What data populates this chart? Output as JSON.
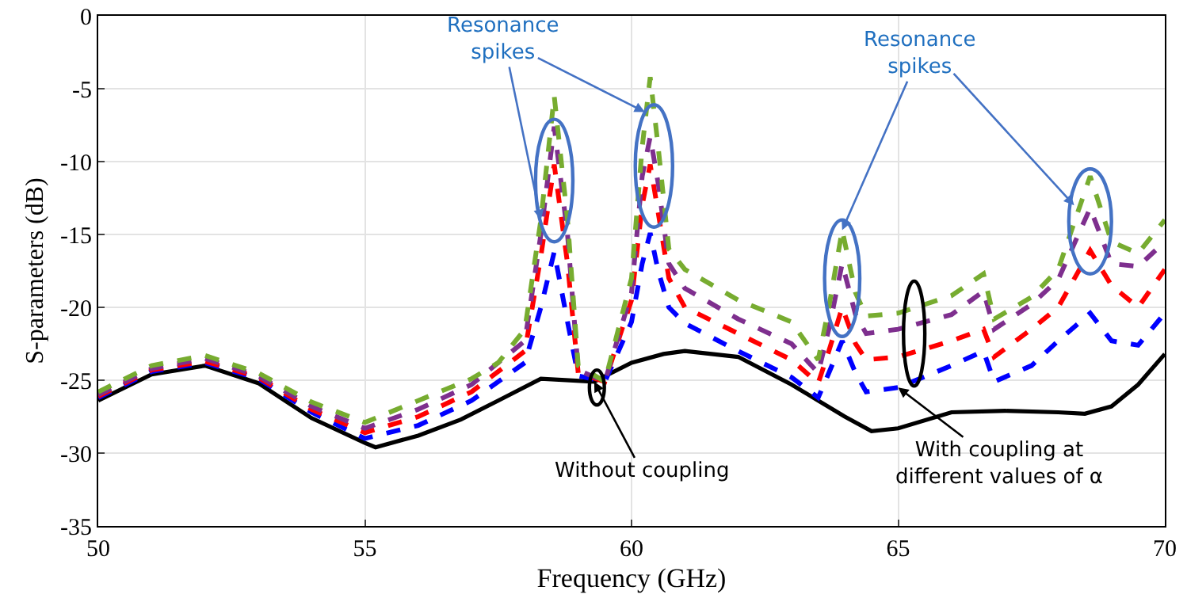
{
  "chart_data": {
    "type": "line",
    "xlabel": "Frequency (GHz)",
    "ylabel": "S-parameters (dB)",
    "xlim": [
      50,
      70
    ],
    "xticks": [
      50,
      55,
      60,
      65,
      70
    ],
    "ylim": [
      -35,
      0
    ],
    "yticks": [
      -35,
      -30,
      -25,
      -20,
      -15,
      -10,
      -5,
      0
    ],
    "grid": true,
    "marker": "none",
    "series": [
      {
        "color": "#000000",
        "line_style": "solid",
        "x": [
          50,
          51,
          52,
          53,
          54,
          55,
          55.2,
          56,
          56.8,
          57.5,
          58.3,
          59.3,
          60,
          60.6,
          61,
          62,
          63,
          64,
          64.5,
          65,
          66,
          67,
          68,
          68.5,
          69,
          69.5,
          70
        ],
        "values": [
          -26.4,
          -24.6,
          -24.0,
          -25.2,
          -27.6,
          -29.3,
          -29.6,
          -28.8,
          -27.7,
          -26.4,
          -24.9,
          -25.1,
          -23.8,
          -23.2,
          -23.0,
          -23.4,
          -25.3,
          -27.5,
          -28.5,
          -28.3,
          -27.2,
          -27.1,
          -27.2,
          -27.3,
          -26.8,
          -25.3,
          -23.2
        ]
      },
      {
        "color": "#0000ff",
        "line_style": "dashed",
        "x": [
          50,
          51,
          52,
          53,
          54,
          55,
          56,
          57,
          58,
          58.3,
          58.55,
          58.8,
          59.0,
          59.5,
          60.0,
          60.2,
          60.35,
          60.5,
          60.7,
          61,
          62,
          63,
          63.5,
          63.7,
          63.95,
          64.2,
          64.4,
          65,
          66,
          66.6,
          66.8,
          67.5,
          68,
          68.6,
          69,
          69.5,
          70
        ],
        "values": [
          -26.2,
          -24.4,
          -23.8,
          -24.9,
          -27.2,
          -29.0,
          -28.1,
          -26.4,
          -23.8,
          -20.0,
          -16.2,
          -21.0,
          -24.7,
          -25.1,
          -21.0,
          -17.0,
          -14.9,
          -17.5,
          -20.0,
          -21.1,
          -23.0,
          -24.8,
          -26.2,
          -24.5,
          -22.3,
          -24.5,
          -25.8,
          -25.5,
          -24.0,
          -23.0,
          -25.1,
          -24.0,
          -22.3,
          -20.4,
          -22.3,
          -22.6,
          -20.4
        ]
      },
      {
        "color": "#ff0000",
        "line_style": "dashed",
        "x": [
          50,
          51,
          52,
          53,
          54,
          55,
          56,
          57,
          58,
          58.3,
          58.55,
          58.8,
          59.0,
          59.5,
          60.0,
          60.2,
          60.35,
          60.5,
          60.7,
          61,
          62,
          63,
          63.5,
          63.7,
          63.95,
          64.2,
          64.4,
          65,
          66,
          66.6,
          66.8,
          67.5,
          68,
          68.6,
          69,
          69.5,
          70
        ],
        "values": [
          -26.1,
          -24.3,
          -23.7,
          -24.8,
          -27.0,
          -28.6,
          -27.5,
          -25.8,
          -23.0,
          -16.5,
          -10.2,
          -17.0,
          -24.5,
          -25.1,
          -19.5,
          -13.0,
          -10.2,
          -13.5,
          -18.0,
          -20.0,
          -21.8,
          -23.6,
          -25.2,
          -23.0,
          -20.0,
          -22.5,
          -23.6,
          -23.4,
          -22.3,
          -21.5,
          -23.4,
          -21.5,
          -20.0,
          -16.1,
          -18.5,
          -20.0,
          -17.4
        ]
      },
      {
        "color": "#7e2f8e",
        "line_style": "dashed",
        "x": [
          50,
          51,
          52,
          53,
          54,
          55,
          56,
          57,
          58,
          58.3,
          58.55,
          58.8,
          59.0,
          59.5,
          60.0,
          60.2,
          60.35,
          60.5,
          60.7,
          61,
          62,
          63,
          63.5,
          63.7,
          63.95,
          64.2,
          64.4,
          65,
          66,
          66.6,
          66.8,
          67.5,
          68,
          68.6,
          69,
          69.5,
          70
        ],
        "values": [
          -26.0,
          -24.2,
          -23.5,
          -24.7,
          -26.8,
          -28.3,
          -27.0,
          -25.3,
          -22.3,
          -15.0,
          -7.6,
          -15.0,
          -24.3,
          -25.1,
          -19.0,
          -11.0,
          -8.3,
          -11.5,
          -17.0,
          -18.7,
          -20.8,
          -22.5,
          -24.5,
          -21.5,
          -17.0,
          -20.5,
          -21.8,
          -21.5,
          -20.5,
          -18.9,
          -21.5,
          -19.8,
          -18.1,
          -13.2,
          -17.0,
          -17.2,
          -15.5
        ]
      },
      {
        "color": "#77ac30",
        "line_style": "dashed",
        "x": [
          50,
          51,
          52,
          53,
          54,
          55,
          56,
          57,
          57.5,
          58,
          58.3,
          58.55,
          58.8,
          59.0,
          59.5,
          60.0,
          60.2,
          60.35,
          60.5,
          60.7,
          61,
          62,
          63,
          63.5,
          63.7,
          63.95,
          64.2,
          64.4,
          65,
          66,
          66.6,
          66.8,
          67.5,
          68,
          68.6,
          69,
          69.5,
          70
        ],
        "values": [
          -25.8,
          -24.0,
          -23.3,
          -24.5,
          -26.5,
          -27.9,
          -26.4,
          -24.9,
          -23.8,
          -21.5,
          -14.0,
          -5.5,
          -14.0,
          -24.0,
          -25.1,
          -18.0,
          -9.0,
          -4.2,
          -9.0,
          -16.0,
          -17.4,
          -19.5,
          -21.0,
          -23.6,
          -20.0,
          -14.7,
          -19.0,
          -20.6,
          -20.4,
          -19.2,
          -17.7,
          -20.8,
          -19.3,
          -17.4,
          -11.0,
          -15.5,
          -16.3,
          -14.0
        ]
      }
    ],
    "annotations": [
      {
        "text": "Resonance spikes",
        "x": 58.3,
        "y": -14.0
      },
      {
        "text": "Resonance spikes",
        "x": 63.95,
        "y": -14.7
      },
      {
        "text": "Without coupling",
        "x": 59.3,
        "y": -25.1
      },
      {
        "text": "With coupling at different values of α",
        "x": 65,
        "y": -25.5
      }
    ]
  }
}
